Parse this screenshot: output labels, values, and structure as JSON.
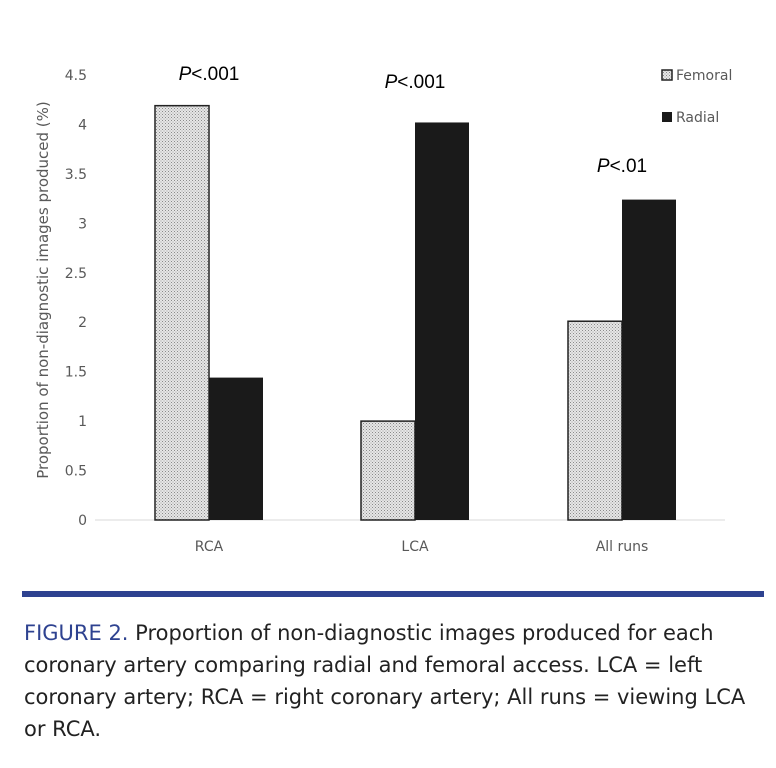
{
  "chart_data": {
    "type": "bar",
    "categories": [
      "RCA",
      "LCA",
      "All runs"
    ],
    "series": [
      {
        "name": "Femoral",
        "values": [
          4.19,
          1.0,
          2.01
        ],
        "fill": "hatched-gray",
        "color": "#bfbfbf"
      },
      {
        "name": "Radial",
        "values": [
          1.44,
          4.02,
          3.24
        ],
        "color": "#1a1a1a"
      }
    ],
    "ylabel": "Proportion of non-diagnostic images produced  (%)",
    "xlabel": "",
    "ylim": [
      0,
      4.5
    ],
    "yticks": [
      "0",
      "0.5",
      "1",
      "1.5",
      "2",
      "2.5",
      "3",
      "3.5",
      "4",
      "4.5"
    ],
    "grid": false,
    "legend": "top-right",
    "annotations": [
      {
        "category": "RCA",
        "text": "<.001",
        "italic_prefix": "P"
      },
      {
        "category": "LCA",
        "text": "<.001",
        "italic_prefix": "P"
      },
      {
        "category": "All runs",
        "text": "<.01",
        "italic_prefix": "P"
      }
    ]
  },
  "caption": {
    "label": "FIGURE 2.",
    "text": " Proportion of non-diagnostic images produced for each coronary artery comparing radial and femoral access. LCA = left coronary artery; RCA = right coronary artery; All runs = viewing LCA or RCA."
  },
  "colors": {
    "accent": "#2e4290"
  }
}
